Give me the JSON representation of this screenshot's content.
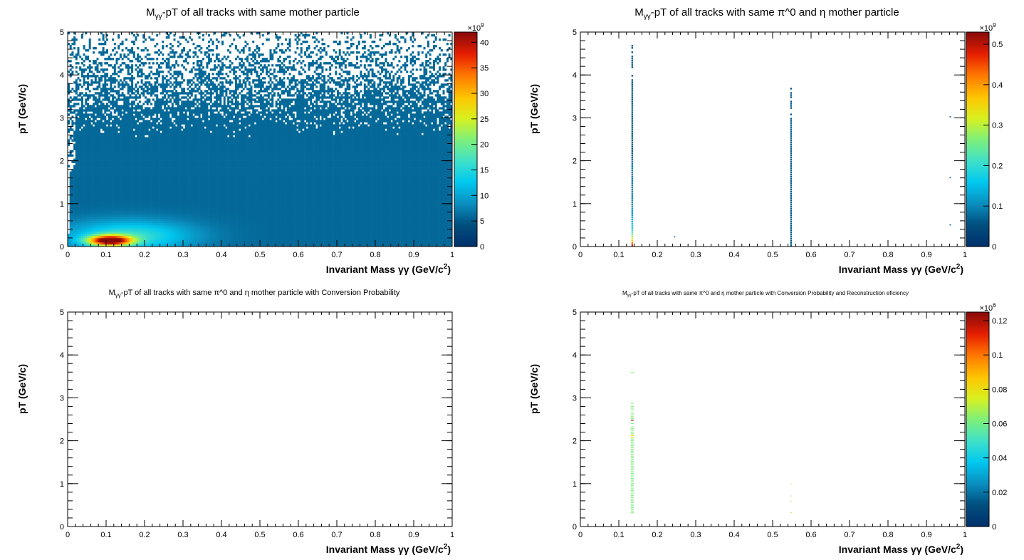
{
  "chart_data": [
    {
      "type": "heatmap",
      "title_main": "M",
      "title_sub": "γγ",
      "title_rest": "-pT of all tracks with same mother particle",
      "xlabel": "Invariant Mass  γγ (GeV/c",
      "xlabel_sup": "2",
      "xlabel_end": ")",
      "ylabel": "pT (GeV/c)",
      "xlim": [
        0,
        1
      ],
      "ylim": [
        0,
        5
      ],
      "x_ticks": [
        "0",
        "0.1",
        "0.2",
        "0.3",
        "0.4",
        "0.5",
        "0.6",
        "0.7",
        "0.8",
        "0.9",
        "1"
      ],
      "y_ticks": [
        "0",
        "1",
        "2",
        "3",
        "4",
        "5"
      ],
      "colorbar": {
        "exponent_base": "×10",
        "exponent": "9",
        "ticks": [
          "0",
          "5",
          "10",
          "15",
          "20",
          "25",
          "30",
          "35",
          "40"
        ],
        "range": [
          0,
          42
        ]
      },
      "distribution": "dense; peak ~40e9 near M=0.1, pT=0.1; fills M 0–1, pT 0–5 with sparse entries above pT≈3"
    },
    {
      "type": "heatmap",
      "title_main": "M",
      "title_sub": "γγ",
      "title_rest": "-pT of all tracks with same π^0 and η mother particle",
      "xlabel": "Invariant Mass  γγ (GeV/c",
      "xlabel_sup": "2",
      "xlabel_end": ")",
      "ylabel": "pT (GeV/c)",
      "xlim": [
        0,
        1
      ],
      "ylim": [
        0,
        5
      ],
      "x_ticks": [
        "0",
        "0.1",
        "0.2",
        "0.3",
        "0.4",
        "0.5",
        "0.6",
        "0.7",
        "0.8",
        "0.9",
        "1"
      ],
      "y_ticks": [
        "0",
        "1",
        "2",
        "3",
        "4",
        "5"
      ],
      "colorbar": {
        "exponent_base": "×10",
        "exponent": "9",
        "ticks": [
          "0",
          "0.1",
          "0.2",
          "0.3",
          "0.4",
          "0.5"
        ],
        "range": [
          0,
          0.53
        ]
      },
      "distribution": "narrow vertical bands at M≈0.135 (π0, pT 0–4.9) and M≈0.548 (η, pT 0–3.7)"
    },
    {
      "type": "heatmap",
      "title_main": "M",
      "title_sub": "γγ",
      "title_rest": "-pT of all tracks with same π^0 and η mother particle with Conversion Probability",
      "xlabel": "Invariant Mass  γγ (GeV/c",
      "xlabel_sup": "2",
      "xlabel_end": ")",
      "ylabel": "pT (GeV/c)",
      "xlim": [
        0,
        1
      ],
      "ylim": [
        0,
        5
      ],
      "x_ticks": [
        "0",
        "0.1",
        "0.2",
        "0.3",
        "0.4",
        "0.5",
        "0.6",
        "0.7",
        "0.8",
        "0.9",
        "1"
      ],
      "y_ticks": [
        "0",
        "1",
        "2",
        "3",
        "4",
        "5"
      ],
      "colorbar": null,
      "distribution": "empty"
    },
    {
      "type": "heatmap",
      "title_main": "M",
      "title_sub": "γγ",
      "title_rest": "-pT of all tracks with same π^0 and η mother particle with Conversion Probability and Reconstruction eficiency",
      "xlabel": "Invariant Mass  γγ (GeV/c",
      "xlabel_sup": "2",
      "xlabel_end": ")",
      "ylabel": "pT (GeV/c)",
      "xlim": [
        0,
        1
      ],
      "ylim": [
        0,
        5
      ],
      "x_ticks": [
        "0",
        "0.1",
        "0.2",
        "0.3",
        "0.4",
        "0.5",
        "0.6",
        "0.7",
        "0.8",
        "0.9",
        "1"
      ],
      "y_ticks": [
        "0",
        "1",
        "2",
        "3",
        "4",
        "5"
      ],
      "colorbar": {
        "exponent_base": "×10",
        "exponent": "6",
        "ticks": [
          "0",
          "0.02",
          "0.04",
          "0.06",
          "0.08",
          "0.1",
          "0.12"
        ],
        "range": [
          0,
          0.125
        ]
      },
      "distribution": "sparse entries in band at M≈0.135 (pT 0.33–3.6) and a few at M≈0.548"
    }
  ],
  "colors": {
    "palette": [
      "#00306b",
      "#004f7f",
      "#0a8fbf",
      "#00c8f0",
      "#3fe0c8",
      "#7ef07a",
      "#d8f020",
      "#ffc400",
      "#ff7a00",
      "#e82000",
      "#8a0a0a"
    ]
  }
}
